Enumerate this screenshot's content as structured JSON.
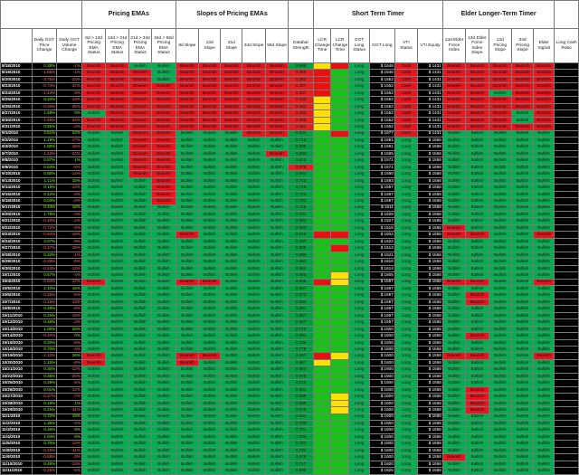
{
  "groups": {
    "pricing_emas": "Pricing EMAs",
    "slopes": "Slopes of Pricing EMAs",
    "short_term": "Short Term Timer",
    "elder": "Elder Longer-Term Timer"
  },
  "columns": [
    "Daily GGT Price Change",
    "Daily GGT Volume Change",
    "8d > 13d Pricing EMA Status",
    "13d > 21d Pricing EMA Status",
    "21d > 34d Pricing EMA Status",
    "34d > 55d Pricing EMA Status",
    "8d Slope",
    "13d Slope",
    "21d Slope",
    "34d Slope",
    "55d Slope",
    "Databar Strength",
    "LCR Change Time",
    "LCR Change Time",
    "GGT Long Status",
    "GGT Long",
    "VTI Status",
    "VTI Equity",
    "13d Elder Force Index",
    "13d Elder Force Index Slope",
    "13d Pricing Slope",
    "34d Pricing Slope",
    "Elder Signal",
    "Long Cash Ratio"
  ],
  "legend": {
    "bullish": "Bullish",
    "bearish": "Bearish",
    "long": "Long",
    "cash": "Cash"
  },
  "rows": [
    {
      "date": "8/18/2010",
      "pc": "0.28%",
      "vc": "-1%",
      "emas": "RRGG",
      "sl": "RRRRR",
      "db": "0.588",
      "lcr": "yr",
      "gs": "Long",
      "gl": "$ 1548",
      "vs": "Cash",
      "ve": "$ 1431",
      "el": "RRRRR",
      "lr": "1.076"
    },
    {
      "date": "8/19/2010",
      "pc": "-1.85%",
      "vc": "-1%",
      "emas": "RRRG",
      "sl": "RRRRR",
      "db": "0.468",
      "lcr": "rg",
      "gs": "Long",
      "gl": "$ 1546",
      "vs": "Cash",
      "ve": "$ 1431",
      "el": "RRRRR",
      "lr": "1.045"
    },
    {
      "date": "8/20/2010",
      "pc": "-3.75%",
      "vc": "-23%",
      "emas": "RRRG",
      "sl": "RRRRR",
      "db": "0.382",
      "lcr": "rg",
      "gs": "Long",
      "gl": "$ 1552",
      "vs": "Cash",
      "ve": "$ 1431",
      "el": "RRRRR",
      "lr": "0.976"
    },
    {
      "date": "8/23/2010",
      "pc": "-0.74%",
      "vc": "-32%",
      "emas": "RRRR",
      "sl": "RRRRR",
      "db": "0.307",
      "lcr": "rg",
      "gs": "Long",
      "gl": "$ 1552",
      "vs": "Cash",
      "ve": "$ 1431",
      "el": "RRRRR",
      "lr": "1.062"
    },
    {
      "date": "8/24/2010",
      "pc": "-1.43%",
      "vc": "-3%",
      "emas": "RRRR",
      "sl": "RRRRR",
      "db": "0.367",
      "lcr": "rg",
      "gs": "Long",
      "gl": "$ 1552",
      "vs": "Cash",
      "ve": "$ 1431",
      "el": "RRGRR",
      "lr": "1.065"
    },
    {
      "date": "8/25/2010",
      "pc": "0.20%",
      "vc": "-19%",
      "emas": "RRRR",
      "sl": "RRRRR",
      "db": "0.433",
      "lcr": "yg",
      "gs": "Long",
      "gl": "$ 1552",
      "vs": "Cash",
      "ve": "$ 1431",
      "el": "RRRRR",
      "lr": "1.034"
    },
    {
      "date": "8/26/2010",
      "pc": "-0.46%",
      "vc": "-25%",
      "emas": "RRRR",
      "sl": "RRRRR",
      "db": "0.364",
      "lcr": "yg",
      "gs": "Long",
      "gl": "$ 1552",
      "vs": "Cash",
      "ve": "$ 1431",
      "el": "RRRRR",
      "lr": "0.989"
    },
    {
      "date": "8/27/2010",
      "pc": "1.68%",
      "vc": "9%",
      "emas": "GRRR",
      "sl": "RRRRR",
      "db": "0.433",
      "lcr": "yg",
      "gs": "Long",
      "gl": "$ 1552",
      "vs": "Cash",
      "ve": "$ 1431",
      "el": "RRRGR",
      "lr": "1.004"
    },
    {
      "date": "8/30/2010",
      "pc": "-1.65%",
      "vc": "-34%",
      "emas": "RRRR",
      "sl": "RRRRR",
      "db": "0.409",
      "lcr": "yg",
      "gs": "Long",
      "gl": "$ 1552",
      "vs": "Cash",
      "ve": "$ 1431",
      "el": "RRRGR",
      "lr": "0.982"
    },
    {
      "date": "8/31/2010",
      "pc": "0.55%",
      "vc": "-2%",
      "emas": "RRRR",
      "sl": "RRRRR",
      "db": "0.481",
      "lcr": "yg",
      "gs": "Long",
      "gl": "$ 1552",
      "vs": "Cash",
      "ve": "$ 1431",
      "el": "RRRRR",
      "lr": "0.978"
    },
    {
      "date": "9/1/2010",
      "pc": "3.51%",
      "vc": "22%",
      "emas": "GGRR",
      "sl": "GGGRR",
      "db": "0.624",
      "lcr": "gr",
      "gs": "Long",
      "gl": "$ 1577",
      "vs": "Cash",
      "ve": "$ 1431",
      "el": "GGGGG",
      "lr": "1.000"
    },
    {
      "date": "9/2/2010",
      "pc": "1.19%",
      "vc": "-17%",
      "emas": "GGRR",
      "sl": "GGGGG",
      "db": "0.715",
      "lcr": "gg",
      "gs": "Long",
      "gl": "$ 1591",
      "vs": "Long",
      "ve": "$ 1556",
      "el": "GGGGG",
      "lr": "1.028"
    },
    {
      "date": "9/3/2010",
      "pc": "1.80%",
      "vc": "-15%",
      "emas": "GGRR",
      "sl": "GGGGG",
      "db": "0.698",
      "lcr": "gg",
      "gs": "Long",
      "gl": "$ 1591",
      "vs": "Long",
      "ve": "$ 1556",
      "el": "GGGGG",
      "lr": "1.051"
    },
    {
      "date": "9/7/2010",
      "pc": "-1.42%",
      "vc": "-23%",
      "emas": "GGRR",
      "sl": "GGGGR",
      "db": "0.604",
      "lcr": "gg",
      "gs": "Long",
      "gl": "$ 1565",
      "vs": "Long",
      "ve": "$ 1556",
      "el": "GGGGG",
      "lr": "1.045"
    },
    {
      "date": "9/8/2010",
      "pc": "0.87%",
      "vc": "1%",
      "emas": "GGRR",
      "sl": "GGGGG",
      "db": "0.613",
      "lcr": "gg",
      "gs": "Long",
      "gl": "$ 1571",
      "vs": "Long",
      "ve": "$ 1556",
      "el": "GGGGG",
      "lr": "1.052"
    },
    {
      "date": "9/9/2010",
      "pc": "0.53%",
      "vc": "-8%",
      "emas": "GGRR",
      "sl": "GGGGG",
      "db": "0.376",
      "lcr": "gg",
      "gs": "Long",
      "gl": "$ 1571",
      "vs": "Long",
      "ve": "$ 1556",
      "el": "GGGGG",
      "lr": "1.135"
    },
    {
      "date": "9/10/2010",
      "pc": "0.80%",
      "vc": "-14%",
      "emas": "GGRR",
      "sl": "GGGGG",
      "db": "0.664",
      "lcr": "gg",
      "gs": "Long",
      "gl": "$ 1580",
      "vs": "Long",
      "ve": "$ 1556",
      "el": "GGGGG",
      "lr": "1.146"
    },
    {
      "date": "9/13/2010",
      "pc": "1.11%",
      "vc": "15%",
      "emas": "GGGR",
      "sl": "GGGGG",
      "db": "0.713",
      "lcr": "gg",
      "gs": "Long",
      "gl": "$ 1593",
      "vs": "Long",
      "ve": "$ 1556",
      "el": "GGGGG",
      "lr": "1.209"
    },
    {
      "date": "9/14/2010",
      "pc": "0.19%",
      "vc": "-13%",
      "emas": "GGGR",
      "sl": "GGGGG",
      "db": "0.725",
      "lcr": "gg",
      "gs": "Long",
      "gl": "$ 1597",
      "vs": "Long",
      "ve": "$ 1556",
      "el": "GGGGG",
      "lr": "1.258"
    },
    {
      "date": "9/15/2010",
      "pc": "0.12%",
      "vc": "-4%",
      "emas": "GGGR",
      "sl": "GGGGG",
      "db": "0.724",
      "lcr": "gg",
      "gs": "Long",
      "gl": "$ 1597",
      "vs": "Long",
      "ve": "$ 1556",
      "el": "GGGGG",
      "lr": "1.273"
    },
    {
      "date": "9/16/2010",
      "pc": "0.03%",
      "vc": "-2%",
      "emas": "GGGR",
      "sl": "GGGGG",
      "db": "0.722",
      "lcr": "gg",
      "gs": "Long",
      "gl": "$ 1597",
      "vs": "Long",
      "ve": "$ 1556",
      "el": "GGGGG",
      "lr": "1.303"
    },
    {
      "date": "9/17/2010",
      "pc": "0.43%",
      "vc": "18%",
      "emas": "GGGG",
      "sl": "GGGGG",
      "db": "0.725",
      "lcr": "gg",
      "gs": "Long",
      "gl": "$ 1611",
      "vs": "Long",
      "ve": "$ 1556",
      "el": "GGGGG",
      "lr": "1.356"
    },
    {
      "date": "9/20/2010",
      "pc": "1.78%",
      "vc": "-3%",
      "emas": "GGGG",
      "sl": "GGGGG",
      "db": "0.731",
      "lcr": "gg",
      "gs": "Long",
      "gl": "$ 1629",
      "vs": "Long",
      "ve": "$ 1556",
      "el": "GGGGG",
      "lr": "1.395"
    },
    {
      "date": "9/21/2010",
      "pc": "-0.40%",
      "vc": "-2%",
      "emas": "GGGG",
      "sl": "GGGGG",
      "db": "0.684",
      "lcr": "gg",
      "gs": "Long",
      "gl": "$ 1627",
      "vs": "Long",
      "ve": "$ 1556",
      "el": "GGGGG",
      "lr": "1.350"
    },
    {
      "date": "9/22/2010",
      "pc": "-0.72%",
      "vc": "-4%",
      "emas": "GGGG",
      "sl": "GGGGG",
      "db": "0.640",
      "lcr": "gg",
      "gs": "Long",
      "gl": "$ 1616",
      "vs": "Long",
      "ve": "$ 1556",
      "el": "RGGGG",
      "lr": "1.328"
    },
    {
      "date": "9/23/2010",
      "pc": "-0.94%",
      "vc": "-16%",
      "emas": "GGGG",
      "sl": "RGGGG",
      "db": "0.615",
      "lcr": "rr",
      "gs": "Long",
      "gl": "$ 1602",
      "vs": "Long",
      "ve": "$ 1556",
      "el": "RRGGR",
      "lr": "1.272"
    },
    {
      "date": "9/24/2010",
      "pc": "2.07%",
      "vc": "-9%",
      "emas": "GGGG",
      "sl": "GGGGG",
      "db": "0.700",
      "lcr": "gg",
      "gs": "Long",
      "gl": "$ 1622",
      "vs": "Long",
      "ve": "$ 1556",
      "el": "GGGGG",
      "lr": "1.318"
    },
    {
      "date": "9/27/2010",
      "pc": "-0.47%",
      "vc": "-15%",
      "emas": "GGGG",
      "sl": "GGGGG",
      "db": "0.668",
      "lcr": "gr",
      "gs": "Long",
      "gl": "$ 1613",
      "vs": "Long",
      "ve": "$ 1556",
      "el": "GGGGG",
      "lr": "1.306"
    },
    {
      "date": "9/28/2010",
      "pc": "0.42%",
      "vc": "-1%",
      "emas": "GGGG",
      "sl": "GGGGG",
      "db": "0.690",
      "lcr": "gg",
      "gs": "Long",
      "gl": "$ 1621",
      "vs": "Long",
      "ve": "$ 1556",
      "el": "GGGGG",
      "lr": "1.307"
    },
    {
      "date": "9/29/2010",
      "pc": "-0.28%",
      "vc": "-5%",
      "emas": "GGGG",
      "sl": "GGGGG",
      "db": "0.684",
      "lcr": "gg",
      "gs": "Long",
      "gl": "$ 1616",
      "vs": "Long",
      "ve": "$ 1556",
      "el": "GGGGG",
      "lr": "1.292"
    },
    {
      "date": "9/30/2010",
      "pc": "-0.24%",
      "vc": "-13%",
      "emas": "GGGG",
      "sl": "GGGGG",
      "db": "0.681",
      "lcr": "gg",
      "gs": "Long",
      "gl": "$ 1614",
      "vs": "Long",
      "ve": "$ 1556",
      "el": "GGGGG",
      "lr": "1.314"
    },
    {
      "date": "10/1/2010",
      "pc": "0.57%",
      "vc": "-4%",
      "emas": "GGGG",
      "sl": "GGGGG",
      "db": "0.665",
      "lcr": "gy",
      "gs": "Long",
      "gl": "$ 1605",
      "vs": "Long",
      "ve": "$ 1556",
      "el": "GGGGG",
      "lr": "1.296"
    },
    {
      "date": "10/4/2010",
      "pc": "-0.84%",
      "vc": "-12%",
      "emas": "RGGG",
      "sl": "RRGGG",
      "db": "0.568",
      "lcr": "ry",
      "gs": "Long",
      "gl": "$ 1597",
      "vs": "Long",
      "ve": "$ 1556",
      "el": "RRGGR",
      "lr": "1.284"
    },
    {
      "date": "10/5/2010",
      "pc": "2.10%",
      "vc": "16%",
      "emas": "GGGG",
      "sl": "GGGGG",
      "db": "0.657",
      "lcr": "gg",
      "gs": "Long",
      "gl": "$ 1597",
      "vs": "Long",
      "ve": "$ 1556",
      "el": "GGGGG",
      "lr": "1.306"
    },
    {
      "date": "10/6/2010",
      "pc": "-0.26%",
      "vc": "-5%",
      "emas": "GGGG",
      "sl": "GGGGG",
      "db": "0.673",
      "lcr": "gg",
      "gs": "Long",
      "gl": "$ 1597",
      "vs": "Long",
      "ve": "$ 1556",
      "el": "GRGGG",
      "lr": "1.339"
    },
    {
      "date": "10/7/2010",
      "pc": "-0.15%",
      "vc": "-13%",
      "emas": "GGGG",
      "sl": "GGGGG",
      "db": "0.644",
      "lcr": "gg",
      "gs": "Long",
      "gl": "$ 1597",
      "vs": "Long",
      "ve": "$ 1556",
      "el": "GRGGG",
      "lr": "1.356"
    },
    {
      "date": "10/8/2010",
      "pc": "0.49%",
      "vc": "-6%",
      "emas": "GGGG",
      "sl": "GGGGG",
      "db": "0.681",
      "lcr": "gg",
      "gs": "Long",
      "gl": "$ 1597",
      "vs": "Long",
      "ve": "$ 1556",
      "el": "GGGGG",
      "lr": "1.361"
    },
    {
      "date": "10/11/2010",
      "pc": "0.15%",
      "vc": "-19%",
      "emas": "GGGG",
      "sl": "GGGGG",
      "db": "0.657",
      "lcr": "gg",
      "gs": "Long",
      "gl": "$ 1597",
      "vs": "Long",
      "ve": "$ 1556",
      "el": "GGGGG",
      "lr": "1.460"
    },
    {
      "date": "10/12/2010",
      "pc": "0.46%",
      "vc": "-2%",
      "emas": "GGGG",
      "sl": "GGGGG",
      "db": "0.647",
      "lcr": "gg",
      "gs": "Long",
      "gl": "$ 1597",
      "vs": "Long",
      "ve": "$ 1556",
      "el": "GGGGG",
      "lr": "1.472"
    },
    {
      "date": "10/13/2010",
      "pc": "1.00%",
      "vc": "26%",
      "emas": "GGGG",
      "sl": "GGGGG",
      "db": "0.719",
      "lcr": "gg",
      "gs": "Long",
      "gl": "$ 1600",
      "vs": "Long",
      "ve": "$ 1556",
      "el": "GGGGG",
      "lr": "1.520"
    },
    {
      "date": "10/14/2010",
      "pc": "-0.40%",
      "vc": "0%",
      "emas": "GGGG",
      "sl": "GGGGG",
      "db": "0.691",
      "lcr": "gg",
      "gs": "Long",
      "gl": "$ 1600",
      "vs": "Long",
      "ve": "$ 1556",
      "el": "GRGGG",
      "lr": "1.525"
    },
    {
      "date": "10/15/2010",
      "pc": "0.20%",
      "vc": "-8%",
      "emas": "GGGG",
      "sl": "GGGGG",
      "db": "0.735",
      "lcr": "gg",
      "gs": "Long",
      "gl": "$ 1600",
      "vs": "Long",
      "ve": "$ 1556",
      "el": "GGGGG",
      "lr": "1.555"
    },
    {
      "date": "10/18/2010",
      "pc": "0.70%",
      "vc": "-4%",
      "emas": "GGGG",
      "sl": "GGGGG",
      "db": "0.775",
      "lcr": "gg",
      "gs": "Long",
      "gl": "$ 1600",
      "vs": "Long",
      "ve": "$ 1556",
      "el": "GGGGG",
      "lr": "1.576"
    },
    {
      "date": "10/19/2010",
      "pc": "-2.10%",
      "vc": "26%",
      "emas": "RGGG",
      "sl": "RRGGG",
      "db": "0.527",
      "lcr": "ry",
      "gs": "Long",
      "gl": "$ 1600",
      "vs": "Long",
      "ve": "$ 1556",
      "el": "RRGGR",
      "lr": "1.527"
    },
    {
      "date": "10/20/2010",
      "pc": "1.15%",
      "vc": "-8%",
      "emas": "RGGG",
      "sl": "RGGGG",
      "db": "0.597",
      "lcr": "yg",
      "gs": "Long",
      "gl": "$ 1600",
      "vs": "Long",
      "ve": "$ 1556",
      "el": "GGGGG",
      "lr": "1.571"
    },
    {
      "date": "10/21/2010",
      "pc": "0.30%",
      "vc": "-12%",
      "emas": "GGGG",
      "sl": "GGGGG",
      "db": "0.653",
      "lcr": "gg",
      "gs": "Long",
      "gl": "$ 1600",
      "vs": "Long",
      "ve": "$ 1556",
      "el": "GGGGG",
      "lr": "1.575"
    },
    {
      "date": "10/22/2010",
      "pc": "0.38%",
      "vc": "-20%",
      "emas": "GGGG",
      "sl": "GGGGG",
      "db": "0.649",
      "lcr": "gg",
      "gs": "Long",
      "gl": "$ 1600",
      "vs": "Long",
      "ve": "$ 1556",
      "el": "GGGGG",
      "lr": "1.608"
    },
    {
      "date": "10/25/2010",
      "pc": "0.26%",
      "vc": "-5%",
      "emas": "GGGG",
      "sl": "GGGGG",
      "db": "0.612",
      "lcr": "gg",
      "gs": "Long",
      "gl": "$ 1600",
      "vs": "Long",
      "ve": "$ 1556",
      "el": "GGGGG",
      "lr": "1.624"
    },
    {
      "date": "10/26/2010",
      "pc": "0.01%",
      "vc": "-12%",
      "emas": "GGGG",
      "sl": "GGGGG",
      "db": "0.601",
      "lcr": "gg",
      "gs": "Long",
      "gl": "$ 1600",
      "vs": "Long",
      "ve": "$ 1556",
      "el": "GRGGG",
      "lr": "1.616"
    },
    {
      "date": "10/27/2010",
      "pc": "-0.27%",
      "vc": "-7%",
      "emas": "GGGG",
      "sl": "GGGGG",
      "db": "0.598",
      "lcr": "gy",
      "gs": "Long",
      "gl": "$ 1600",
      "vs": "Long",
      "ve": "$ 1556",
      "el": "GRGGG",
      "lr": "1.606"
    },
    {
      "date": "10/28/2010",
      "pc": "0.19%",
      "vc": "1%",
      "emas": "GGGG",
      "sl": "GGGGG",
      "db": "0.599",
      "lcr": "gy",
      "gs": "Long",
      "gl": "$ 1600",
      "vs": "Long",
      "ve": "$ 1556",
      "el": "GRGGG",
      "lr": "1.646"
    },
    {
      "date": "10/29/2010",
      "pc": "0.15%",
      "vc": "-11%",
      "emas": "GGGG",
      "sl": "GGGGG",
      "db": "0.579",
      "lcr": "gy",
      "gs": "Long",
      "gl": "$ 1600",
      "vs": "Long",
      "ve": "$ 1556",
      "el": "GRGGG",
      "lr": "1.608"
    },
    {
      "date": "11/1/2010",
      "pc": "0.72%",
      "vc": "19%",
      "emas": "GGGG",
      "sl": "GGGGG",
      "db": "0.631",
      "lcr": "gg",
      "gs": "Long",
      "gl": "$ 1600",
      "vs": "Long",
      "ve": "$ 1556",
      "el": "GGGGG",
      "lr": "1.665"
    },
    {
      "date": "11/2/2010",
      "pc": "1.36%",
      "vc": "-4%",
      "emas": "GGGG",
      "sl": "GGGGG",
      "db": "0.700",
      "lcr": "gg",
      "gs": "Long",
      "gl": "$ 1600",
      "vs": "Long",
      "ve": "$ 1556",
      "el": "GGGGG",
      "lr": "1.744"
    },
    {
      "date": "11/3/2010",
      "pc": "0.46%",
      "vc": "9%",
      "emas": "GGGG",
      "sl": "GGGGG",
      "db": "0.701",
      "lcr": "gg",
      "gs": "Long",
      "gl": "$ 1600",
      "vs": "Long",
      "ve": "$ 1556",
      "el": "GGGGG",
      "lr": "1.785"
    },
    {
      "date": "11/4/2010",
      "pc": "1.04%",
      "vc": "6%",
      "emas": "GGGG",
      "sl": "GGGGG",
      "db": "1.000",
      "lcr": "gg",
      "gs": "Long",
      "gl": "$ 1600",
      "vs": "Long",
      "ve": "$ 1556",
      "el": "GGGGG",
      "lr": "1.826"
    },
    {
      "date": "11/5/2010",
      "pc": "0.76%",
      "vc": "-14%",
      "emas": "GGGG",
      "sl": "GGGGG",
      "db": "0.784",
      "lcr": "gg",
      "gs": "Long",
      "gl": "$ 1600",
      "vs": "Long",
      "ve": "$ 1556",
      "el": "GGGGG",
      "lr": "1.862"
    },
    {
      "date": "11/8/2010",
      "pc": "-0.15%",
      "vc": "-11%",
      "emas": "GGGG",
      "sl": "GGGGG",
      "db": "0.731",
      "lcr": "gg",
      "gs": "Long",
      "gl": "$ 1600",
      "vs": "Long",
      "ve": "$ 1556",
      "el": "GGGGG",
      "lr": "1.873"
    },
    {
      "date": "11/9/2010",
      "pc": "-0.86%",
      "vc": "-3%",
      "emas": "GGGG",
      "sl": "GGGGG",
      "db": "0.678",
      "lcr": "gg",
      "gs": "Long",
      "gl": "$ 1600",
      "vs": "Long",
      "ve": "$ 1556",
      "el": "RGGGG",
      "lr": "1.853"
    },
    {
      "date": "11/10/2010",
      "pc": "0.49%",
      "vc": "-13%",
      "emas": "GGGG",
      "sl": "GGGGG",
      "db": "0.717",
      "lcr": "gg",
      "gs": "Long",
      "gl": "$ 1600",
      "vs": "Long",
      "ve": "$ 1556",
      "el": "GGGGG",
      "lr": "1.853"
    },
    {
      "date": "11/11/2010",
      "pc": "-0.25%",
      "vc": "-6%",
      "emas": "GGGG",
      "sl": "GGGGG",
      "db": "0.590",
      "lcr": "gg",
      "gs": "Long",
      "gl": "$ 1625",
      "vs": "Long",
      "ve": "$ 1556",
      "el": "GGGGG",
      "lr": "1.860"
    }
  ]
}
